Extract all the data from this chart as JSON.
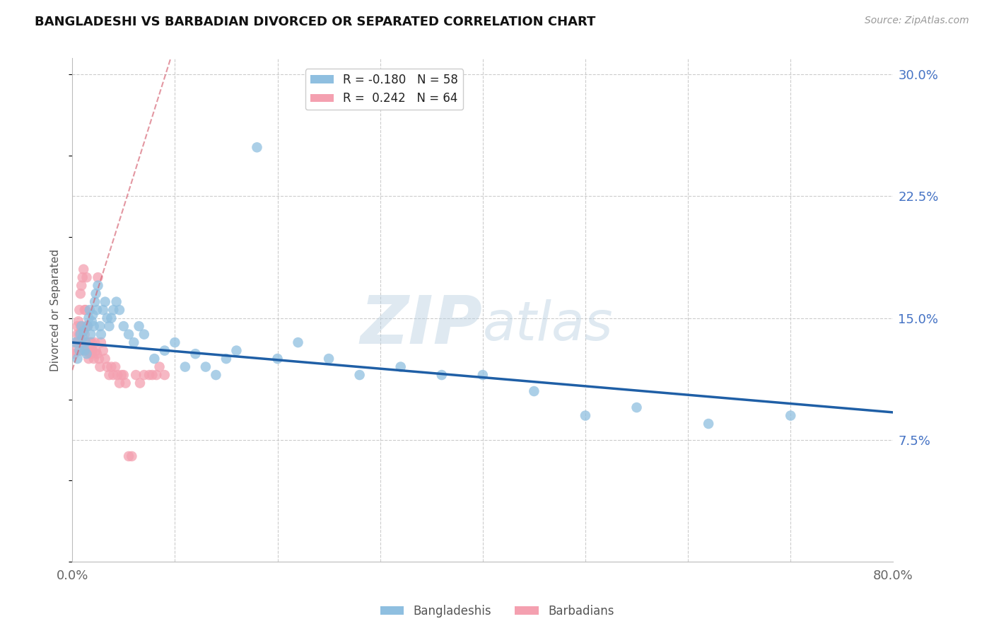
{
  "title": "BANGLADESHI VS BARBADIAN DIVORCED OR SEPARATED CORRELATION CHART",
  "source": "Source: ZipAtlas.com",
  "ylabel": "Divorced or Separated",
  "xlim": [
    0.0,
    0.8
  ],
  "ylim": [
    0.0,
    0.31
  ],
  "yticks": [
    0.075,
    0.15,
    0.225,
    0.3
  ],
  "ytick_labels": [
    "7.5%",
    "15.0%",
    "22.5%",
    "30.0%"
  ],
  "xticks": [
    0.0,
    0.1,
    0.2,
    0.3,
    0.4,
    0.5,
    0.6,
    0.7,
    0.8
  ],
  "xtick_labels": [
    "0.0%",
    "",
    "",
    "",
    "",
    "",
    "",
    "",
    "80.0%"
  ],
  "legend_blue_label": "R = -0.180   N = 58",
  "legend_pink_label": "R =  0.242   N = 64",
  "blue_color": "#8fbfe0",
  "pink_color": "#f4a0b0",
  "blue_line_color": "#1f5fa6",
  "pink_line_color": "#d46070",
  "watermark_zip": "ZIP",
  "watermark_atlas": "atlas",
  "bangladeshi_x": [
    0.003,
    0.005,
    0.007,
    0.008,
    0.009,
    0.01,
    0.011,
    0.012,
    0.013,
    0.014,
    0.015,
    0.016,
    0.017,
    0.018,
    0.019,
    0.02,
    0.021,
    0.022,
    0.023,
    0.024,
    0.025,
    0.027,
    0.028,
    0.03,
    0.032,
    0.034,
    0.036,
    0.038,
    0.04,
    0.043,
    0.046,
    0.05,
    0.055,
    0.06,
    0.065,
    0.07,
    0.08,
    0.09,
    0.1,
    0.11,
    0.12,
    0.13,
    0.14,
    0.15,
    0.16,
    0.18,
    0.2,
    0.22,
    0.25,
    0.28,
    0.32,
    0.36,
    0.4,
    0.45,
    0.5,
    0.55,
    0.62,
    0.7
  ],
  "bangladeshi_y": [
    0.135,
    0.125,
    0.13,
    0.14,
    0.145,
    0.138,
    0.142,
    0.13,
    0.135,
    0.128,
    0.145,
    0.15,
    0.155,
    0.14,
    0.148,
    0.152,
    0.145,
    0.16,
    0.165,
    0.155,
    0.17,
    0.145,
    0.14,
    0.155,
    0.16,
    0.15,
    0.145,
    0.15,
    0.155,
    0.16,
    0.155,
    0.145,
    0.14,
    0.135,
    0.145,
    0.14,
    0.125,
    0.13,
    0.135,
    0.12,
    0.128,
    0.12,
    0.115,
    0.125,
    0.13,
    0.255,
    0.125,
    0.135,
    0.125,
    0.115,
    0.12,
    0.115,
    0.115,
    0.105,
    0.09,
    0.095,
    0.085,
    0.09
  ],
  "barbadian_x": [
    0.002,
    0.003,
    0.004,
    0.005,
    0.005,
    0.006,
    0.006,
    0.007,
    0.007,
    0.008,
    0.008,
    0.009,
    0.009,
    0.01,
    0.01,
    0.011,
    0.011,
    0.012,
    0.012,
    0.013,
    0.013,
    0.014,
    0.014,
    0.015,
    0.015,
    0.016,
    0.016,
    0.017,
    0.017,
    0.018,
    0.018,
    0.019,
    0.019,
    0.02,
    0.021,
    0.022,
    0.023,
    0.024,
    0.025,
    0.026,
    0.027,
    0.028,
    0.03,
    0.032,
    0.034,
    0.036,
    0.038,
    0.04,
    0.042,
    0.044,
    0.046,
    0.048,
    0.05,
    0.052,
    0.055,
    0.058,
    0.062,
    0.066,
    0.07,
    0.075,
    0.078,
    0.082,
    0.085,
    0.09
  ],
  "barbadian_y": [
    0.128,
    0.13,
    0.135,
    0.145,
    0.14,
    0.148,
    0.135,
    0.155,
    0.14,
    0.165,
    0.145,
    0.17,
    0.135,
    0.175,
    0.13,
    0.18,
    0.135,
    0.155,
    0.14,
    0.155,
    0.145,
    0.175,
    0.13,
    0.145,
    0.135,
    0.13,
    0.125,
    0.135,
    0.13,
    0.128,
    0.135,
    0.135,
    0.13,
    0.13,
    0.125,
    0.135,
    0.13,
    0.128,
    0.175,
    0.125,
    0.12,
    0.135,
    0.13,
    0.125,
    0.12,
    0.115,
    0.12,
    0.115,
    0.12,
    0.115,
    0.11,
    0.115,
    0.115,
    0.11,
    0.065,
    0.065,
    0.115,
    0.11,
    0.115,
    0.115,
    0.115,
    0.115,
    0.12,
    0.115
  ],
  "blue_R": -0.18,
  "pink_R": 0.242,
  "blue_line_start_y": 0.135,
  "blue_line_end_y": 0.092,
  "pink_line_intercept": 0.118,
  "pink_line_slope": 2.0
}
